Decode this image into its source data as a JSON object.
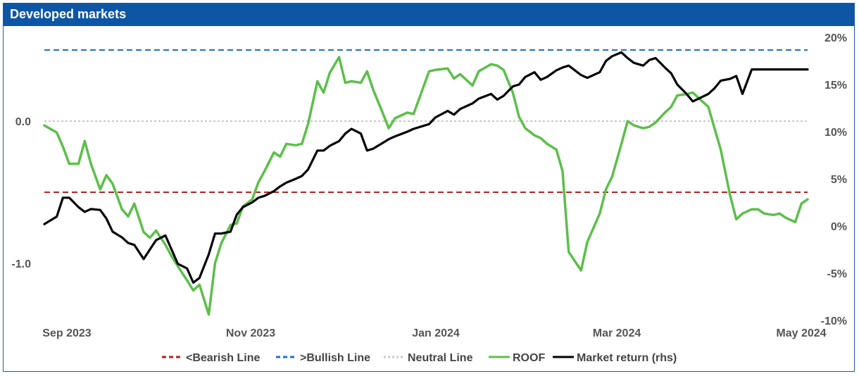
{
  "chart_data": {
    "type": "line",
    "title": "Developed markets",
    "x_ticks": [
      "Sep 2023",
      "Nov 2023",
      "Jan 2024",
      "Mar 2024",
      "May 2024"
    ],
    "y_left": {
      "range": [
        -1.4,
        0.65
      ],
      "ticks": [
        "0.0",
        "-1.0"
      ],
      "tick_values": [
        0.0,
        -1.0
      ]
    },
    "y_right": {
      "range": [
        -10,
        20
      ],
      "ticks": [
        "20%",
        "15%",
        "10%",
        "5%",
        "0%",
        "-5%",
        "-10%"
      ],
      "tick_values": [
        20,
        15,
        10,
        5,
        0,
        -5,
        -10
      ]
    },
    "reference_lines": [
      {
        "name": "<Bearish Line",
        "value": -0.5,
        "axis": "left",
        "color": "#b22222",
        "style": "dashed"
      },
      {
        "name": ">Bullish Line",
        "value": 0.5,
        "axis": "left",
        "color": "#1f6fce",
        "style": "dashed"
      },
      {
        "name": "Neutral Line",
        "value": 0.0,
        "axis": "left",
        "color": "#c8c8c8",
        "style": "dotted"
      }
    ],
    "series": [
      {
        "name": "ROOF",
        "axis": "left",
        "color": "#5cbf4a",
        "x": [
          "2023-08-31",
          "2023-09-04",
          "2023-09-06",
          "2023-09-08",
          "2023-09-11",
          "2023-09-13",
          "2023-09-15",
          "2023-09-18",
          "2023-09-20",
          "2023-09-22",
          "2023-09-25",
          "2023-09-27",
          "2023-09-29",
          "2023-10-02",
          "2023-10-04",
          "2023-10-06",
          "2023-10-09",
          "2023-10-11",
          "2023-10-13",
          "2023-10-16",
          "2023-10-18",
          "2023-10-20",
          "2023-10-23",
          "2023-10-25",
          "2023-10-27",
          "2023-10-30",
          "2023-11-01",
          "2023-11-03",
          "2023-11-06",
          "2023-11-08",
          "2023-11-10",
          "2023-11-13",
          "2023-11-15",
          "2023-11-17",
          "2023-11-20",
          "2023-11-22",
          "2023-11-24",
          "2023-11-27",
          "2023-11-29",
          "2023-12-01",
          "2023-12-04",
          "2023-12-06",
          "2023-12-08",
          "2023-12-11",
          "2023-12-13",
          "2023-12-15",
          "2023-12-18",
          "2023-12-20",
          "2023-12-22",
          "2023-12-26",
          "2023-12-28",
          "2024-01-02",
          "2024-01-04",
          "2024-01-08",
          "2024-01-10",
          "2024-01-12",
          "2024-01-16",
          "2024-01-18",
          "2024-01-22",
          "2024-01-24",
          "2024-01-26",
          "2024-01-29",
          "2024-01-31",
          "2024-02-02",
          "2024-02-05",
          "2024-02-07",
          "2024-02-09",
          "2024-02-12",
          "2024-02-14",
          "2024-02-16",
          "2024-02-20",
          "2024-02-22",
          "2024-02-26",
          "2024-02-28",
          "2024-03-01",
          "2024-03-04",
          "2024-03-06",
          "2024-03-08",
          "2024-03-11",
          "2024-03-13",
          "2024-03-15",
          "2024-03-18",
          "2024-03-20",
          "2024-03-22",
          "2024-03-25",
          "2024-03-27",
          "2024-04-01",
          "2024-04-03",
          "2024-04-05",
          "2024-04-08",
          "2024-04-10",
          "2024-04-12",
          "2024-04-15",
          "2024-04-17",
          "2024-04-19",
          "2024-04-22",
          "2024-04-24",
          "2024-04-26",
          "2024-04-29",
          "2024-05-01",
          "2024-05-03"
        ],
        "values": [
          -0.03,
          -0.08,
          -0.18,
          -0.3,
          -0.3,
          -0.14,
          -0.3,
          -0.48,
          -0.38,
          -0.44,
          -0.62,
          -0.67,
          -0.58,
          -0.78,
          -0.82,
          -0.77,
          -0.87,
          -0.95,
          -1.02,
          -1.12,
          -1.19,
          -1.15,
          -1.36,
          -1.0,
          -0.86,
          -0.73,
          -0.72,
          -0.6,
          -0.55,
          -0.43,
          -0.35,
          -0.22,
          -0.25,
          -0.16,
          -0.17,
          -0.16,
          -0.02,
          0.28,
          0.2,
          0.34,
          0.45,
          0.27,
          0.28,
          0.27,
          0.35,
          0.22,
          0.06,
          -0.05,
          0.02,
          0.06,
          0.05,
          0.35,
          0.36,
          0.37,
          0.3,
          0.33,
          0.25,
          0.35,
          0.4,
          0.39,
          0.36,
          0.2,
          0.03,
          -0.05,
          -0.1,
          -0.12,
          -0.16,
          -0.2,
          -0.35,
          -0.92,
          -1.05,
          -0.85,
          -0.65,
          -0.48,
          -0.39,
          -0.16,
          0.0,
          -0.03,
          -0.05,
          -0.04,
          -0.01,
          0.06,
          0.1,
          0.18,
          0.19,
          0.2,
          0.1,
          -0.05,
          -0.2,
          -0.52,
          -0.69,
          -0.65,
          -0.62,
          -0.62,
          -0.65,
          -0.66,
          -0.65,
          -0.68,
          -0.71,
          -0.58,
          -0.55
        ]
      },
      {
        "name": "Market return (rhs)",
        "axis": "right",
        "color": "#000000",
        "x": [
          "2023-08-31",
          "2023-09-04",
          "2023-09-06",
          "2023-09-08",
          "2023-09-11",
          "2023-09-13",
          "2023-09-15",
          "2023-09-18",
          "2023-09-20",
          "2023-09-22",
          "2023-09-25",
          "2023-09-27",
          "2023-09-29",
          "2023-10-02",
          "2023-10-04",
          "2023-10-06",
          "2023-10-09",
          "2023-10-11",
          "2023-10-13",
          "2023-10-16",
          "2023-10-18",
          "2023-10-20",
          "2023-10-23",
          "2023-10-25",
          "2023-10-27",
          "2023-10-30",
          "2023-11-01",
          "2023-11-03",
          "2023-11-06",
          "2023-11-08",
          "2023-11-10",
          "2023-11-13",
          "2023-11-15",
          "2023-11-17",
          "2023-11-20",
          "2023-11-22",
          "2023-11-24",
          "2023-11-27",
          "2023-11-29",
          "2023-12-01",
          "2023-12-04",
          "2023-12-06",
          "2023-12-08",
          "2023-12-11",
          "2023-12-13",
          "2023-12-15",
          "2023-12-18",
          "2023-12-20",
          "2023-12-22",
          "2023-12-26",
          "2023-12-28",
          "2024-01-02",
          "2024-01-04",
          "2024-01-08",
          "2024-01-10",
          "2024-01-12",
          "2024-01-16",
          "2024-01-18",
          "2024-01-22",
          "2024-01-24",
          "2024-01-26",
          "2024-01-29",
          "2024-01-31",
          "2024-02-02",
          "2024-02-05",
          "2024-02-07",
          "2024-02-09",
          "2024-02-12",
          "2024-02-14",
          "2024-02-16",
          "2024-02-20",
          "2024-02-22",
          "2024-02-26",
          "2024-02-28",
          "2024-03-01",
          "2024-03-04",
          "2024-03-06",
          "2024-03-08",
          "2024-03-11",
          "2024-03-13",
          "2024-03-15",
          "2024-03-18",
          "2024-03-20",
          "2024-03-22",
          "2024-03-25",
          "2024-03-27",
          "2024-04-01",
          "2024-04-03",
          "2024-04-05",
          "2024-04-08",
          "2024-04-10",
          "2024-04-12",
          "2024-04-15",
          "2024-04-17",
          "2024-04-19",
          "2024-04-22",
          "2024-04-24",
          "2024-04-26",
          "2024-04-29",
          "2024-05-01",
          "2024-05-03"
        ],
        "values": [
          0.2,
          1.0,
          3.0,
          3.0,
          2.0,
          1.5,
          1.8,
          1.7,
          0.8,
          -0.6,
          -1.2,
          -1.8,
          -2.0,
          -3.5,
          -2.5,
          -1.5,
          -1.0,
          -2.5,
          -4.0,
          -4.5,
          -6.0,
          -5.5,
          -3.0,
          -0.8,
          -0.8,
          -0.6,
          1.2,
          2.0,
          2.5,
          3.0,
          3.2,
          3.7,
          4.2,
          4.6,
          5.0,
          5.3,
          6.0,
          8.0,
          8.0,
          8.5,
          9.0,
          9.8,
          10.3,
          9.8,
          8.0,
          8.2,
          8.8,
          9.2,
          9.5,
          10.0,
          10.3,
          10.8,
          11.5,
          12.2,
          11.8,
          12.4,
          13.0,
          13.5,
          14.0,
          13.4,
          13.8,
          14.8,
          15.0,
          15.8,
          16.3,
          15.5,
          15.8,
          16.5,
          16.8,
          17.0,
          16.0,
          15.7,
          16.3,
          17.5,
          18.0,
          18.4,
          17.8,
          17.3,
          17.0,
          17.6,
          17.8,
          16.8,
          16.2,
          15.0,
          14.0,
          13.2,
          14.0,
          14.6,
          15.4,
          15.6,
          15.9,
          14.0,
          16.6,
          16.6,
          16.6,
          16.6,
          16.6,
          16.6,
          16.6,
          16.6,
          16.6
        ]
      }
    ],
    "legend_position": "bottom",
    "grid": false
  }
}
